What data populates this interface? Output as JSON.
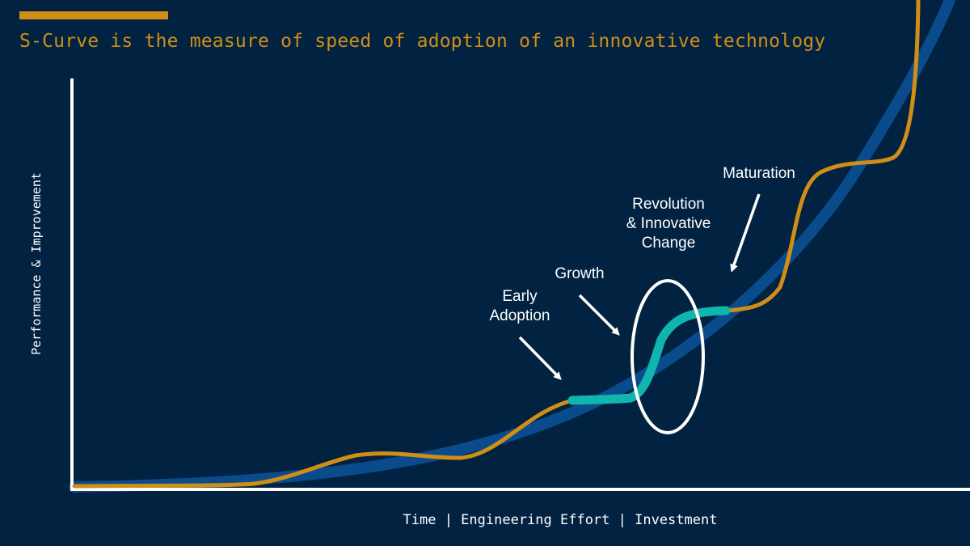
{
  "subtitle": "S-Curve is the measure of speed of adoption of an innovative technology",
  "axes": {
    "y_label": "Performance & Improvement",
    "x_label": "Time | Engineering Effort | Investment"
  },
  "stages": {
    "early_line1": "Early",
    "early_line2": "Adoption",
    "growth": "Growth",
    "revolution_line1": "Revolution",
    "revolution_line2": "& Innovative",
    "revolution_line3": "Change",
    "maturation": "Maturation"
  },
  "colors": {
    "background": "#012241",
    "accent": "#d08e16",
    "trend": "#0a4b8c",
    "highlight": "#11b5b0",
    "axis": "#ffffff"
  }
}
